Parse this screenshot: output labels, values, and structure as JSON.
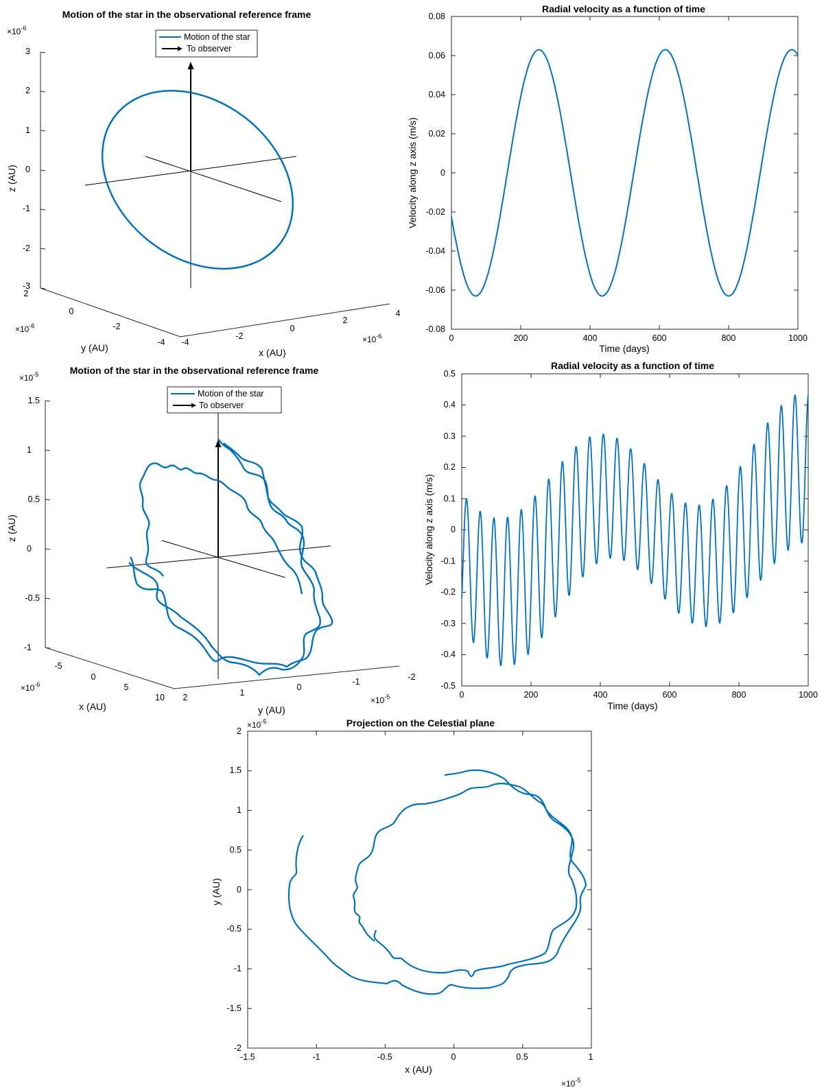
{
  "figure": {
    "background": "#ffffff",
    "series_color": "#0072bd",
    "axis_color": "#262626"
  },
  "chart_data": [
    {
      "id": "p1",
      "type": "line3d",
      "title": "Motion of the star in the observational reference frame",
      "xlabel": "x (AU)",
      "ylabel": "y (AU)",
      "zlabel": "z (AU)",
      "xlim": [
        -4e-06,
        4e-06
      ],
      "ylim": [
        -4e-06,
        2e-06
      ],
      "zlim": [
        -3e-06,
        3e-06
      ],
      "xticks": [
        -4,
        -2,
        0,
        2,
        4
      ],
      "yticks": [
        -4,
        -2,
        0,
        2
      ],
      "zticks": [
        -3,
        -2,
        -1,
        0,
        1,
        2,
        3
      ],
      "x_exponent": "×10",
      "y_exponent": "×10",
      "z_exponent": "×10",
      "exponent_power": "-6",
      "legend": {
        "entries": [
          "Motion of the star",
          "To observer"
        ],
        "placement": "top"
      },
      "series": [
        {
          "name": "Motion of the star",
          "orbit": "single closed ellipse inclined to the line of sight"
        }
      ]
    },
    {
      "id": "p2",
      "type": "line",
      "title": "Radial velocity as a function of time",
      "xlabel": "Time (days)",
      "ylabel": "Velocity along z axis (m/s)",
      "xlim": [
        0,
        1000
      ],
      "ylim": [
        -0.08,
        0.08
      ],
      "xticks": [
        "0",
        "200",
        "400",
        "600",
        "800",
        "1000"
      ],
      "yticks": [
        "-0.08",
        "-0.06",
        "-0.04",
        "-0.02",
        "0",
        "0.02",
        "0.04",
        "0.06",
        "0.08"
      ],
      "series": [
        {
          "amplitude": 0.063,
          "period_days": 365,
          "min_at_days": [
            70,
            435,
            800
          ],
          "max_at_days": [
            278,
            643
          ],
          "start_value": -0.012,
          "end_value": 0.061
        }
      ]
    },
    {
      "id": "p3",
      "type": "line3d",
      "title": "Motion of the star in the observational reference frame",
      "xlabel": "x (AU)",
      "ylabel": "y (AU)",
      "zlabel": "z (AU)",
      "xticks": [
        -5,
        0,
        5,
        10
      ],
      "yticks": [
        2,
        1,
        0,
        -1,
        -2
      ],
      "zticks": [
        -1,
        -0.5,
        0,
        0.5,
        1,
        1.5
      ],
      "x_exponent": "×10",
      "x_exponent_power": "-6",
      "y_exponent": "×10",
      "y_exponent_power": "-5",
      "z_exponent": "×10",
      "z_exponent_power": "-5",
      "legend": {
        "entries": [
          "Motion of the star",
          "To observer"
        ],
        "placement": "top"
      },
      "series": [
        {
          "name": "Motion of the star",
          "orbit": "wobbly spiral (two planets)"
        }
      ]
    },
    {
      "id": "p4",
      "type": "line",
      "title": "Radial velocity as a function of time",
      "xlabel": "Time (days)",
      "ylabel": "Velocity along z axis (m/s)",
      "xlim": [
        0,
        1000
      ],
      "ylim": [
        -0.5,
        0.5
      ],
      "xticks": [
        "0",
        "200",
        "400",
        "600",
        "800",
        "1000"
      ],
      "yticks": [
        "-0.5",
        "-0.4",
        "-0.3",
        "-0.2",
        "-0.1",
        "0",
        "0.1",
        "0.2",
        "0.3",
        "0.4",
        "0.5"
      ],
      "series": [
        {
          "fast_amplitude": 0.21,
          "fast_period_days": 39.5,
          "envelope_peaks_days": [
            15,
            410,
            995
          ],
          "envelope_troughs_days": [
            165,
            750
          ],
          "max_value": 0.42,
          "min_value": -0.415
        }
      ]
    },
    {
      "id": "p5",
      "type": "line",
      "title": "Projection on the Celestial plane",
      "xlabel": "x (AU)",
      "ylabel": "y (AU)",
      "xlim": [
        -1.5e-05,
        1e-05
      ],
      "ylim": [
        -2e-05,
        2e-05
      ],
      "xticks": [
        "-1.5",
        "-1",
        "-0.5",
        "0",
        "0.5",
        "1"
      ],
      "yticks": [
        "-2",
        "-1.5",
        "-1",
        "-0.5",
        "0",
        "0.5",
        "1",
        "1.5",
        "2"
      ],
      "x_exponent": "×10",
      "y_exponent": "×10",
      "exponent_power": "-5",
      "series": [
        {
          "start_point": [
            -0.9,
            0.7
          ],
          "end_point": [
            -0.06,
            1.48
          ],
          "units_of": "1e-5 AU",
          "loops": "about 2.5 wobbly turns"
        }
      ]
    }
  ]
}
